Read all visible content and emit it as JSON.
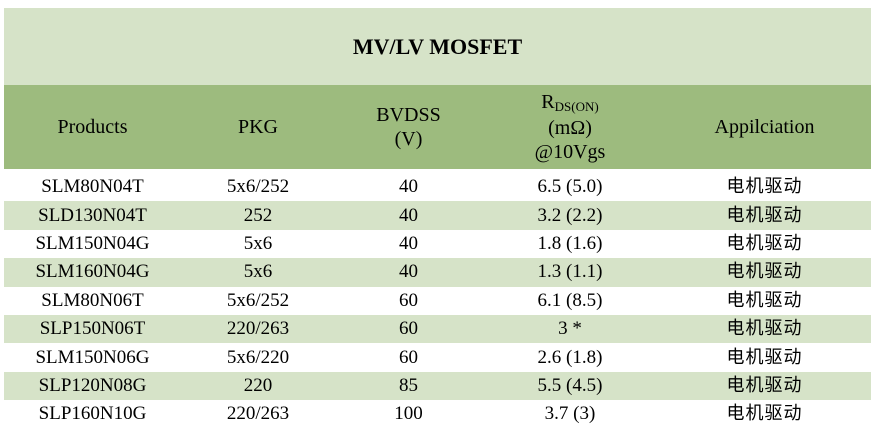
{
  "table": {
    "title": "MV/LV MOSFET",
    "headers": {
      "products": "Products",
      "pkg": "PKG",
      "bvdss_line1": "BVDSS",
      "bvdss_line2": "(V)",
      "rds_main": "R",
      "rds_sub": "DS(ON)",
      "rds_line2": "(mΩ)",
      "rds_line3": "@10Vgs",
      "application": "Appilciation"
    },
    "rows": [
      {
        "product": "SLM80N04T",
        "pkg": "5x6/252",
        "bvdss": "40",
        "rds": "6.5 (5.0)",
        "application": "电机驱动"
      },
      {
        "product": "SLD130N04T",
        "pkg": "252",
        "bvdss": "40",
        "rds": "3.2 (2.2)",
        "application": "电机驱动"
      },
      {
        "product": "SLM150N04G",
        "pkg": "5x6",
        "bvdss": "40",
        "rds": "1.8 (1.6)",
        "application": "电机驱动"
      },
      {
        "product": "SLM160N04G",
        "pkg": "5x6",
        "bvdss": "40",
        "rds": "1.3 (1.1)",
        "application": "电机驱动"
      },
      {
        "product": "SLM80N06T",
        "pkg": "5x6/252",
        "bvdss": "60",
        "rds": "6.1 (8.5)",
        "application": "电机驱动"
      },
      {
        "product": "SLP150N06T",
        "pkg": "220/263",
        "bvdss": "60",
        "rds": "3 *",
        "application": "电机驱动"
      },
      {
        "product": "SLM150N06G",
        "pkg": "5x6/220",
        "bvdss": "60",
        "rds": "2.6 (1.8)",
        "application": "电机驱动"
      },
      {
        "product": "SLP120N08G",
        "pkg": "220",
        "bvdss": "85",
        "rds": "5.5 (4.5)",
        "application": "电机驱动"
      },
      {
        "product": "SLP160N10G",
        "pkg": "220/263",
        "bvdss": "100",
        "rds": "3.7 (3)",
        "application": "电机驱动"
      }
    ]
  },
  "colors": {
    "title_bg": "#d6e3c8",
    "header_bg": "#9dbb7e",
    "alt_row_bg": "#d6e3c8"
  }
}
